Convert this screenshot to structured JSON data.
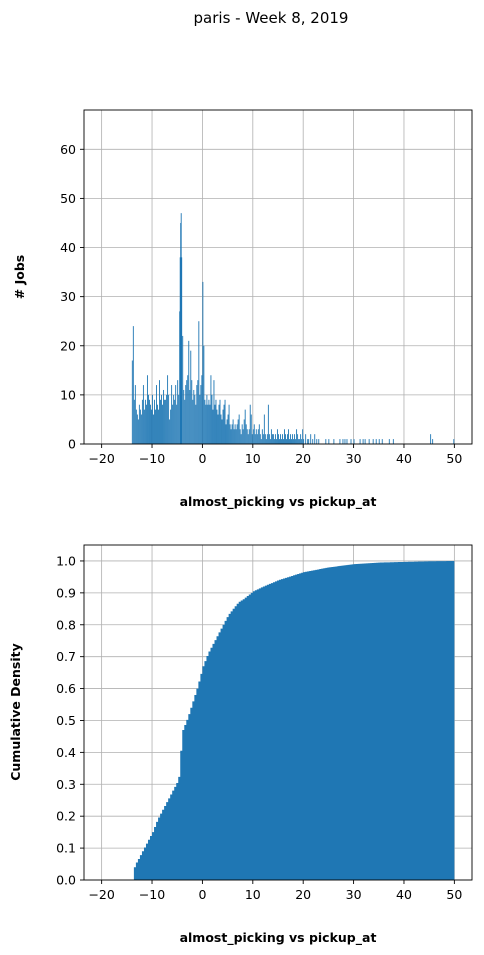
{
  "figure_title": "paris - Week 8, 2019",
  "chart_data": [
    {
      "type": "bar",
      "ylabel": "# Jobs",
      "xlabel": "almost_picking vs pickup_at",
      "xlim": [
        -23.5,
        53.5
      ],
      "ylim": [
        0,
        68
      ],
      "xticks": [
        -20,
        -10,
        0,
        10,
        20,
        30,
        40,
        50
      ],
      "xtick_labels": [
        "−20",
        "−10",
        "0",
        "10",
        "20",
        "30",
        "40",
        "50"
      ],
      "yticks": [
        0,
        10,
        20,
        30,
        40,
        50,
        60
      ],
      "ytick_labels": [
        "0",
        "10",
        "20",
        "30",
        "40",
        "50",
        "60"
      ],
      "grid": true,
      "color": "#1f77b4",
      "bin_width": 0.1,
      "points": [
        [
          -14.0,
          17
        ],
        [
          -13.8,
          24
        ],
        [
          -13.6,
          9
        ],
        [
          -13.4,
          12
        ],
        [
          -13.2,
          7
        ],
        [
          -13.0,
          6
        ],
        [
          -12.8,
          5
        ],
        [
          -12.6,
          8
        ],
        [
          -12.4,
          7
        ],
        [
          -12.2,
          6
        ],
        [
          -12.0,
          9
        ],
        [
          -11.8,
          12
        ],
        [
          -11.6,
          7
        ],
        [
          -11.4,
          9
        ],
        [
          -11.2,
          8
        ],
        [
          -11.0,
          14
        ],
        [
          -10.8,
          10
        ],
        [
          -10.6,
          9
        ],
        [
          -10.4,
          8
        ],
        [
          -10.2,
          7
        ],
        [
          -10.0,
          10
        ],
        [
          -9.8,
          6
        ],
        [
          -9.6,
          9
        ],
        [
          -9.4,
          7
        ],
        [
          -9.2,
          12
        ],
        [
          -9.0,
          8
        ],
        [
          -8.8,
          7
        ],
        [
          -8.6,
          13
        ],
        [
          -8.4,
          9
        ],
        [
          -8.2,
          10
        ],
        [
          -8.0,
          8
        ],
        [
          -7.8,
          11
        ],
        [
          -7.6,
          9
        ],
        [
          -7.4,
          9
        ],
        [
          -7.2,
          10
        ],
        [
          -7.0,
          14
        ],
        [
          -6.8,
          10
        ],
        [
          -6.6,
          5
        ],
        [
          -6.4,
          7
        ],
        [
          -6.2,
          12
        ],
        [
          -6.0,
          8
        ],
        [
          -5.8,
          10
        ],
        [
          -5.6,
          9
        ],
        [
          -5.4,
          12
        ],
        [
          -5.2,
          8
        ],
        [
          -5.0,
          13
        ],
        [
          -4.8,
          10
        ],
        [
          -4.6,
          27
        ],
        [
          -4.5,
          38
        ],
        [
          -4.4,
          45
        ],
        [
          -4.3,
          47
        ],
        [
          -4.2,
          38
        ],
        [
          -4.0,
          22
        ],
        [
          -3.8,
          11
        ],
        [
          -3.6,
          9
        ],
        [
          -3.4,
          12
        ],
        [
          -3.2,
          13
        ],
        [
          -3.0,
          14
        ],
        [
          -2.8,
          21
        ],
        [
          -2.6,
          11
        ],
        [
          -2.4,
          19
        ],
        [
          -2.2,
          13
        ],
        [
          -2.0,
          9
        ],
        [
          -1.8,
          11
        ],
        [
          -1.6,
          10
        ],
        [
          -1.4,
          8
        ],
        [
          -1.2,
          12
        ],
        [
          -1.0,
          13
        ],
        [
          -0.8,
          25
        ],
        [
          -0.6,
          10
        ],
        [
          -0.4,
          12
        ],
        [
          -0.2,
          14
        ],
        [
          0.0,
          33
        ],
        [
          0.2,
          20
        ],
        [
          0.4,
          9
        ],
        [
          0.6,
          8
        ],
        [
          0.8,
          10
        ],
        [
          1.0,
          8
        ],
        [
          1.2,
          9
        ],
        [
          1.4,
          8
        ],
        [
          1.6,
          14
        ],
        [
          1.8,
          10
        ],
        [
          2.0,
          7
        ],
        [
          2.2,
          13
        ],
        [
          2.4,
          8
        ],
        [
          2.6,
          9
        ],
        [
          2.8,
          7
        ],
        [
          3.0,
          6
        ],
        [
          3.2,
          8
        ],
        [
          3.4,
          9
        ],
        [
          3.6,
          6
        ],
        [
          3.8,
          5
        ],
        [
          4.0,
          7
        ],
        [
          4.2,
          8
        ],
        [
          4.4,
          9
        ],
        [
          4.6,
          4
        ],
        [
          4.8,
          5
        ],
        [
          5.0,
          6
        ],
        [
          5.2,
          8
        ],
        [
          5.4,
          4
        ],
        [
          5.6,
          3
        ],
        [
          5.8,
          4
        ],
        [
          6.0,
          5
        ],
        [
          6.2,
          3
        ],
        [
          6.4,
          4
        ],
        [
          6.6,
          3
        ],
        [
          6.8,
          4
        ],
        [
          7.0,
          5
        ],
        [
          7.2,
          6
        ],
        [
          7.4,
          3
        ],
        [
          7.6,
          2
        ],
        [
          7.8,
          4
        ],
        [
          8.0,
          3
        ],
        [
          8.2,
          5
        ],
        [
          8.4,
          7
        ],
        [
          8.6,
          4
        ],
        [
          8.8,
          3
        ],
        [
          9.0,
          2
        ],
        [
          9.2,
          3
        ],
        [
          9.4,
          8
        ],
        [
          9.6,
          6
        ],
        [
          9.8,
          2
        ],
        [
          10.0,
          3
        ],
        [
          10.2,
          4
        ],
        [
          10.4,
          2
        ],
        [
          10.6,
          3
        ],
        [
          10.8,
          2
        ],
        [
          11.0,
          3
        ],
        [
          11.2,
          4
        ],
        [
          11.4,
          2
        ],
        [
          11.6,
          1
        ],
        [
          11.8,
          3
        ],
        [
          12.0,
          2
        ],
        [
          12.2,
          6
        ],
        [
          12.4,
          2
        ],
        [
          12.6,
          1
        ],
        [
          12.8,
          2
        ],
        [
          13.0,
          8
        ],
        [
          13.2,
          2
        ],
        [
          13.4,
          1
        ],
        [
          13.6,
          3
        ],
        [
          13.8,
          2
        ],
        [
          14.0,
          2
        ],
        [
          14.2,
          1
        ],
        [
          14.4,
          2
        ],
        [
          14.6,
          1
        ],
        [
          14.8,
          3
        ],
        [
          15.0,
          2
        ],
        [
          15.2,
          1
        ],
        [
          15.4,
          2
        ],
        [
          15.6,
          1
        ],
        [
          15.8,
          2
        ],
        [
          16.0,
          1
        ],
        [
          16.2,
          3
        ],
        [
          16.4,
          2
        ],
        [
          16.6,
          1
        ],
        [
          16.8,
          2
        ],
        [
          17.0,
          3
        ],
        [
          17.2,
          1
        ],
        [
          17.4,
          2
        ],
        [
          17.6,
          1
        ],
        [
          17.8,
          2
        ],
        [
          18.0,
          1
        ],
        [
          18.2,
          2
        ],
        [
          18.4,
          1
        ],
        [
          18.6,
          3
        ],
        [
          18.8,
          2
        ],
        [
          19.0,
          1
        ],
        [
          19.2,
          1
        ],
        [
          19.4,
          2
        ],
        [
          19.6,
          1
        ],
        [
          19.8,
          3
        ],
        [
          20.0,
          1
        ],
        [
          20.4,
          2
        ],
        [
          20.8,
          1
        ],
        [
          21.0,
          1
        ],
        [
          21.4,
          2
        ],
        [
          21.8,
          1
        ],
        [
          22.2,
          2
        ],
        [
          22.6,
          1
        ],
        [
          23.0,
          1
        ],
        [
          24.4,
          1
        ],
        [
          25.0,
          1
        ],
        [
          26.0,
          1
        ],
        [
          27.2,
          1
        ],
        [
          27.8,
          1
        ],
        [
          28.2,
          1
        ],
        [
          28.6,
          1
        ],
        [
          29.4,
          1
        ],
        [
          30.0,
          1
        ],
        [
          31.2,
          1
        ],
        [
          31.8,
          1
        ],
        [
          32.2,
          1
        ],
        [
          33.0,
          1
        ],
        [
          33.8,
          1
        ],
        [
          34.4,
          1
        ],
        [
          35.0,
          1
        ],
        [
          35.6,
          1
        ],
        [
          37.0,
          1
        ],
        [
          37.8,
          1
        ],
        [
          45.2,
          2
        ],
        [
          45.6,
          1
        ],
        [
          49.8,
          1
        ]
      ]
    },
    {
      "type": "area",
      "ylabel": "Cumulative Density",
      "xlabel": "almost_picking vs pickup_at",
      "xlim": [
        -23.5,
        53.5
      ],
      "ylim": [
        0,
        1.05
      ],
      "xticks": [
        -20,
        -10,
        0,
        10,
        20,
        30,
        40,
        50
      ],
      "xtick_labels": [
        "−20",
        "−10",
        "0",
        "10",
        "20",
        "30",
        "40",
        "50"
      ],
      "yticks": [
        0,
        0.1,
        0.2,
        0.3,
        0.4,
        0.5,
        0.6,
        0.7,
        0.8,
        0.9,
        1.0
      ],
      "ytick_labels": [
        "0.0",
        "0.1",
        "0.2",
        "0.3",
        "0.4",
        "0.5",
        "0.6",
        "0.7",
        "0.8",
        "0.9",
        "1.0"
      ],
      "grid": true,
      "color": "#1f77b4",
      "x": [
        -14.0,
        -13.8,
        -13.4,
        -13.0,
        -12.0,
        -11.0,
        -10.0,
        -9.0,
        -8.0,
        -7.0,
        -6.0,
        -5.0,
        -4.7,
        -4.5,
        -4.3,
        -4.1,
        -4.0,
        -3.0,
        -2.0,
        -1.0,
        0.0,
        1.0,
        2.0,
        3.0,
        4.0,
        5.0,
        6.0,
        7.0,
        8.0,
        10.0,
        12.0,
        15.0,
        20.0,
        25.0,
        30.0,
        35.0,
        40.0,
        45.0,
        50.0
      ],
      "y": [
        0.0,
        0.03,
        0.05,
        0.06,
        0.09,
        0.12,
        0.15,
        0.19,
        0.22,
        0.25,
        0.28,
        0.31,
        0.33,
        0.38,
        0.43,
        0.45,
        0.47,
        0.51,
        0.56,
        0.61,
        0.67,
        0.71,
        0.74,
        0.77,
        0.8,
        0.83,
        0.85,
        0.87,
        0.88,
        0.905,
        0.92,
        0.94,
        0.965,
        0.98,
        0.99,
        0.995,
        0.997,
        0.999,
        1.0
      ]
    }
  ]
}
